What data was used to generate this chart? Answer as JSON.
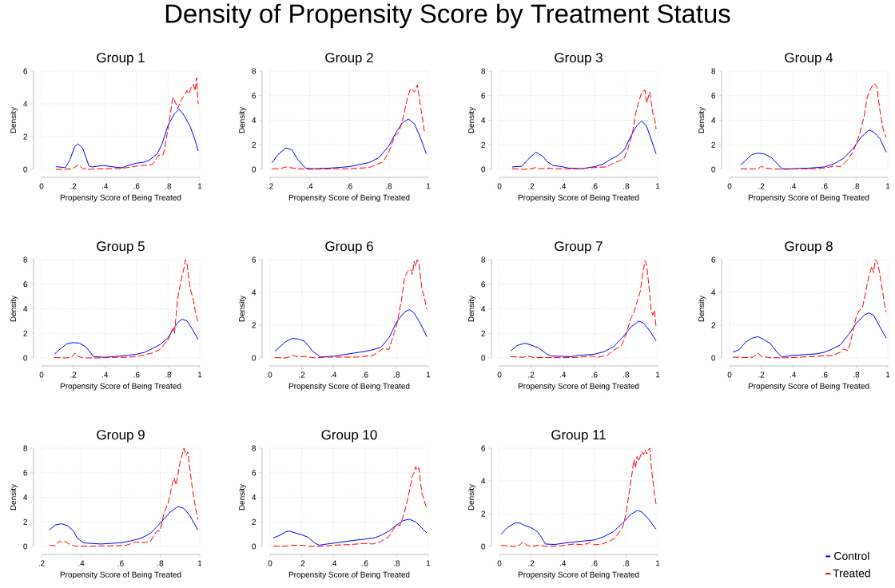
{
  "chart_data": [
    {
      "type": "line",
      "title": "Group 1",
      "xlabel": "Propensity Score of Being Treated",
      "ylabel": "Density",
      "annotations": [
        "Density of Propensity Score by Treatment Status"
      ],
      "grid": true,
      "xlim": [
        0,
        1
      ],
      "ylim": [
        0,
        6
      ],
      "xticks": [
        0,
        {
          "value": 0.2,
          "label": ".2"
        },
        {
          "value": 0.4,
          "label": ".4"
        },
        {
          "value": 0.6,
          "label": ".6"
        },
        {
          "value": 0.8,
          "label": ".8"
        },
        1
      ],
      "yticks": [
        0,
        2,
        4,
        6
      ],
      "series": [
        {
          "color": "#0000ff",
          "line_style": "solid",
          "x": [
            0.09,
            0.15,
            0.18,
            0.21,
            0.23,
            0.26,
            0.3,
            0.32,
            0.36,
            0.39,
            0.43,
            0.47,
            0.51,
            0.55,
            0.6,
            0.64,
            0.68,
            0.73,
            0.76,
            0.8,
            0.84,
            0.87,
            0.9,
            0.94,
            0.97,
            0.99
          ],
          "values": [
            0.17,
            0.1,
            0.6,
            1.4,
            1.55,
            1.3,
            0.2,
            0.15,
            0.2,
            0.24,
            0.18,
            0.13,
            0.1,
            0.25,
            0.38,
            0.42,
            0.55,
            0.95,
            1.5,
            2.7,
            3.4,
            3.68,
            3.3,
            2.6,
            1.8,
            1.12
          ]
        },
        {
          "color": "#ff0000",
          "line_style": "dashed",
          "x": [
            0.09,
            0.15,
            0.2,
            0.23,
            0.26,
            0.3,
            0.4,
            0.5,
            0.6,
            0.66,
            0.7,
            0.74,
            0.77,
            0.8,
            0.83,
            0.85,
            0.86,
            0.88,
            0.9,
            0.92,
            0.93,
            0.95,
            0.96,
            0.97,
            0.98,
            0.99
          ],
          "values": [
            0,
            0,
            0.05,
            0.28,
            0.05,
            0,
            0.05,
            0.05,
            0.2,
            0.25,
            0.3,
            0.85,
            0.9,
            2.5,
            4.4,
            4.0,
            3.7,
            4.2,
            4.5,
            4.8,
            4.6,
            5.1,
            5.2,
            4.8,
            5.6,
            4.0
          ]
        }
      ]
    },
    {
      "type": "line",
      "title": "Group 2",
      "xlabel": "Propensity Score of Being Treated",
      "ylabel": "Density",
      "grid": true,
      "xlim": [
        0.2,
        1
      ],
      "ylim": [
        0,
        8
      ],
      "xticks": [
        {
          "value": 0.2,
          "label": ".2"
        },
        {
          "value": 0.4,
          "label": ".4"
        },
        {
          "value": 0.6,
          "label": ".6"
        },
        {
          "value": 0.8,
          "label": ".8"
        },
        1
      ],
      "yticks": [
        0,
        2,
        4,
        6,
        8
      ],
      "series": [
        {
          "color": "#0000ff",
          "line_style": "solid",
          "x": [
            0.21,
            0.24,
            0.28,
            0.31,
            0.34,
            0.38,
            0.42,
            0.5,
            0.6,
            0.7,
            0.75,
            0.8,
            0.84,
            0.87,
            0.9,
            0.93,
            0.96,
            0.99
          ],
          "values": [
            0.55,
            1.2,
            1.75,
            1.6,
            0.8,
            0.1,
            0.05,
            0.1,
            0.22,
            0.55,
            0.95,
            1.9,
            3.1,
            3.8,
            4.1,
            3.7,
            2.6,
            1.25
          ]
        },
        {
          "color": "#ff0000",
          "line_style": "dashed",
          "x": [
            0.21,
            0.25,
            0.28,
            0.3,
            0.34,
            0.4,
            0.5,
            0.6,
            0.7,
            0.77,
            0.8,
            0.83,
            0.85,
            0.87,
            0.89,
            0.91,
            0.93,
            0.945,
            0.96,
            0.98
          ],
          "values": [
            0.05,
            0.05,
            0.2,
            0.15,
            0.05,
            0,
            0.05,
            0.05,
            0.15,
            0.6,
            1.4,
            2.7,
            3.0,
            4.0,
            5.5,
            6.6,
            6.3,
            6.9,
            5.2,
            3.1
          ]
        }
      ]
    },
    {
      "type": "line",
      "title": "Group 3",
      "xlabel": "Propensity Score of Being Treated",
      "ylabel": "Density",
      "grid": true,
      "xlim": [
        0,
        1
      ],
      "ylim": [
        0,
        8
      ],
      "xticks": [
        0,
        {
          "value": 0.2,
          "label": ".2"
        },
        {
          "value": 0.4,
          "label": ".4"
        },
        {
          "value": 0.6,
          "label": ".6"
        },
        {
          "value": 0.8,
          "label": ".8"
        },
        1
      ],
      "yticks": [
        0,
        2,
        4,
        6,
        8
      ],
      "series": [
        {
          "color": "#0000ff",
          "line_style": "solid",
          "x": [
            0.08,
            0.14,
            0.18,
            0.23,
            0.27,
            0.3,
            0.34,
            0.38,
            0.44,
            0.52,
            0.6,
            0.65,
            0.7,
            0.75,
            0.79,
            0.83,
            0.87,
            0.9,
            0.93,
            0.96,
            0.99
          ],
          "values": [
            0.2,
            0.25,
            0.8,
            1.4,
            1.1,
            0.65,
            0.3,
            0.25,
            0.1,
            0.05,
            0.22,
            0.4,
            0.8,
            1.15,
            1.6,
            2.7,
            3.6,
            3.95,
            3.5,
            2.4,
            1.25
          ]
        },
        {
          "color": "#ff0000",
          "line_style": "dashed",
          "x": [
            0.08,
            0.15,
            0.2,
            0.23,
            0.26,
            0.3,
            0.35,
            0.4,
            0.5,
            0.6,
            0.68,
            0.72,
            0.76,
            0.79,
            0.81,
            0.84,
            0.86,
            0.88,
            0.9,
            0.92,
            0.93,
            0.95,
            0.97,
            0.98,
            0.99
          ],
          "values": [
            0.05,
            0,
            0.05,
            0.15,
            0.05,
            0.1,
            0.05,
            0.05,
            0.05,
            0.15,
            0.2,
            0.5,
            0.7,
            0.95,
            1.6,
            2.9,
            4.5,
            5.5,
            6.3,
            6.45,
            5.4,
            6.3,
            4.5,
            4.2,
            3.3
          ]
        }
      ]
    },
    {
      "type": "line",
      "title": "Group 4",
      "xlabel": "Propensity Score of Being Treated",
      "ylabel": "Density",
      "grid": true,
      "xlim": [
        0,
        1
      ],
      "ylim": [
        0,
        8
      ],
      "xticks": [
        0,
        {
          "value": 0.2,
          "label": ".2"
        },
        {
          "value": 0.4,
          "label": ".4"
        },
        {
          "value": 0.6,
          "label": ".6"
        },
        {
          "value": 0.8,
          "label": ".8"
        },
        1
      ],
      "yticks": [
        0,
        2,
        4,
        6,
        8
      ],
      "series": [
        {
          "color": "#0000ff",
          "line_style": "solid",
          "x": [
            0.07,
            0.1,
            0.14,
            0.18,
            0.22,
            0.26,
            0.3,
            0.33,
            0.4,
            0.5,
            0.6,
            0.66,
            0.72,
            0.78,
            0.83,
            0.88,
            0.91,
            0.95,
            0.99
          ],
          "values": [
            0.35,
            0.7,
            1.2,
            1.32,
            1.25,
            1.0,
            0.5,
            0.05,
            0.05,
            0.1,
            0.2,
            0.45,
            0.9,
            1.7,
            2.6,
            3.2,
            3.05,
            2.5,
            1.4
          ]
        },
        {
          "color": "#ff0000",
          "line_style": "dashed",
          "x": [
            0.07,
            0.15,
            0.18,
            0.2,
            0.23,
            0.28,
            0.35,
            0.45,
            0.55,
            0.62,
            0.67,
            0.7,
            0.74,
            0.78,
            0.82,
            0.85,
            0.87,
            0.89,
            0.91,
            0.93,
            0.95,
            0.97,
            0.99
          ],
          "values": [
            0.05,
            0.03,
            0.05,
            0.25,
            0.1,
            0.03,
            0,
            0.05,
            0.05,
            0.15,
            0.3,
            0.2,
            0.7,
            1.4,
            2.8,
            4.3,
            5.9,
            6.5,
            7.0,
            6.8,
            4.8,
            3.3,
            2.6
          ]
        }
      ]
    },
    {
      "type": "line",
      "title": "Group 5",
      "xlabel": "Propensity Score of Being Treated",
      "ylabel": "Density",
      "grid": true,
      "xlim": [
        0,
        1
      ],
      "ylim": [
        0,
        8
      ],
      "xticks": [
        0,
        {
          "value": 0.2,
          "label": ".2"
        },
        {
          "value": 0.4,
          "label": ".4"
        },
        {
          "value": 0.6,
          "label": ".6"
        },
        {
          "value": 0.8,
          "label": ".8"
        },
        1
      ],
      "yticks": [
        0,
        2,
        4,
        6,
        8
      ],
      "series": [
        {
          "color": "#0000ff",
          "line_style": "solid",
          "x": [
            0.08,
            0.12,
            0.16,
            0.2,
            0.24,
            0.28,
            0.33,
            0.4,
            0.5,
            0.6,
            0.65,
            0.7,
            0.75,
            0.8,
            0.84,
            0.87,
            0.89,
            0.92,
            0.95,
            0.99
          ],
          "values": [
            0.28,
            0.75,
            1.15,
            1.25,
            1.2,
            0.9,
            0.1,
            0.05,
            0.15,
            0.3,
            0.45,
            0.75,
            1.1,
            1.65,
            2.5,
            3.0,
            3.15,
            3.0,
            2.4,
            1.5
          ]
        },
        {
          "color": "#ff0000",
          "line_style": "dashed",
          "x": [
            0.08,
            0.15,
            0.19,
            0.21,
            0.23,
            0.28,
            0.35,
            0.45,
            0.55,
            0.62,
            0.7,
            0.75,
            0.8,
            0.83,
            0.84,
            0.86,
            0.88,
            0.9,
            0.91,
            0.92,
            0.94,
            0.96,
            0.97,
            0.99
          ],
          "values": [
            0.03,
            0,
            0.05,
            0.4,
            0.1,
            0,
            0,
            0.05,
            0.05,
            0.15,
            0.4,
            0.7,
            1.5,
            2.4,
            2.0,
            4.8,
            6.2,
            7.3,
            8.0,
            7.6,
            5.6,
            4.7,
            3.9,
            2.8
          ]
        }
      ]
    },
    {
      "type": "line",
      "title": "Group 6",
      "xlabel": "Propensity Score of Being Treated",
      "ylabel": "Density",
      "grid": true,
      "xlim": [
        0,
        1
      ],
      "ylim": [
        0,
        6
      ],
      "xticks": [
        0,
        {
          "value": 0.2,
          "label": ".2"
        },
        {
          "value": 0.4,
          "label": ".4"
        },
        {
          "value": 0.6,
          "label": ".6"
        },
        {
          "value": 0.8,
          "label": ".8"
        },
        1
      ],
      "yticks": [
        0,
        2,
        4,
        6
      ],
      "series": [
        {
          "color": "#0000ff",
          "line_style": "solid",
          "x": [
            0.03,
            0.07,
            0.1,
            0.14,
            0.18,
            0.22,
            0.27,
            0.32,
            0.4,
            0.5,
            0.6,
            0.65,
            0.7,
            0.75,
            0.8,
            0.85,
            0.88,
            0.91,
            0.95,
            0.99
          ],
          "values": [
            0.4,
            0.75,
            1.0,
            1.2,
            1.15,
            1.0,
            0.4,
            0.05,
            0.1,
            0.25,
            0.4,
            0.5,
            0.65,
            1.2,
            2.2,
            2.8,
            2.95,
            2.75,
            2.1,
            1.3
          ]
        },
        {
          "color": "#ff0000",
          "line_style": "dashed",
          "x": [
            0.03,
            0.1,
            0.15,
            0.18,
            0.22,
            0.28,
            0.35,
            0.45,
            0.55,
            0.65,
            0.72,
            0.75,
            0.78,
            0.8,
            0.83,
            0.85,
            0.87,
            0.89,
            0.9,
            0.91,
            0.92,
            0.93,
            0.94,
            0.96,
            0.97,
            0.99
          ],
          "values": [
            0.02,
            0,
            0.15,
            0.05,
            0.1,
            0,
            0.05,
            0.05,
            0.05,
            0.15,
            0.6,
            0.5,
            1.4,
            2.0,
            3.5,
            4.9,
            5.3,
            5.4,
            5.1,
            5.9,
            5.6,
            6.0,
            5.8,
            4.2,
            3.9,
            3.0
          ]
        }
      ]
    },
    {
      "type": "line",
      "title": "Group 7",
      "xlabel": "Propensity Score of Being Treated",
      "ylabel": "Density",
      "grid": true,
      "xlim": [
        0,
        1
      ],
      "ylim": [
        0,
        8
      ],
      "xticks": [
        0,
        {
          "value": 0.2,
          "label": ".2"
        },
        {
          "value": 0.4,
          "label": ".4"
        },
        {
          "value": 0.6,
          "label": ".6"
        },
        {
          "value": 0.8,
          "label": ".8"
        },
        1
      ],
      "yticks": [
        0,
        2,
        4,
        6,
        8
      ],
      "series": [
        {
          "color": "#0000ff",
          "line_style": "solid",
          "x": [
            0.07,
            0.11,
            0.16,
            0.2,
            0.25,
            0.3,
            0.33,
            0.4,
            0.45,
            0.5,
            0.6,
            0.66,
            0.72,
            0.78,
            0.83,
            0.88,
            0.91,
            0.95,
            0.99
          ],
          "values": [
            0.55,
            1.0,
            1.2,
            1.05,
            0.8,
            0.3,
            0.15,
            0.13,
            0.1,
            0.2,
            0.3,
            0.5,
            0.9,
            1.7,
            2.5,
            3.0,
            2.85,
            2.2,
            1.4
          ]
        },
        {
          "color": "#ff0000",
          "line_style": "dashed",
          "x": [
            0.07,
            0.15,
            0.18,
            0.22,
            0.3,
            0.4,
            0.5,
            0.58,
            0.62,
            0.68,
            0.72,
            0.77,
            0.8,
            0.83,
            0.85,
            0.87,
            0.89,
            0.91,
            0.92,
            0.93,
            0.95,
            0.96,
            0.97,
            0.98,
            0.99
          ],
          "values": [
            0.1,
            0.05,
            0.15,
            0.03,
            0.03,
            0.02,
            0.05,
            0.15,
            0.05,
            0.2,
            0.6,
            1.0,
            1.9,
            3.2,
            3.7,
            4.6,
            5.4,
            7.2,
            7.9,
            7.6,
            5.2,
            3.8,
            3.5,
            3.9,
            2.5
          ]
        }
      ]
    },
    {
      "type": "line",
      "title": "Group 8",
      "xlabel": "Propensity Score of Being Treated",
      "ylabel": "Density",
      "grid": true,
      "xlim": [
        0,
        1
      ],
      "ylim": [
        0,
        6
      ],
      "xticks": [
        0,
        {
          "value": 0.2,
          "label": ".2"
        },
        {
          "value": 0.4,
          "label": ".4"
        },
        {
          "value": 0.6,
          "label": ".6"
        },
        {
          "value": 0.8,
          "label": ".8"
        },
        1
      ],
      "yticks": [
        0,
        2,
        4,
        6
      ],
      "series": [
        {
          "color": "#0000ff",
          "line_style": "solid",
          "x": [
            0.02,
            0.06,
            0.1,
            0.14,
            0.18,
            0.22,
            0.26,
            0.3,
            0.33,
            0.4,
            0.5,
            0.55,
            0.6,
            0.65,
            0.7,
            0.75,
            0.8,
            0.85,
            0.88,
            0.91,
            0.95,
            0.99
          ],
          "values": [
            0.35,
            0.5,
            0.95,
            1.2,
            1.3,
            1.1,
            0.85,
            0.35,
            0.05,
            0.15,
            0.22,
            0.25,
            0.35,
            0.55,
            0.8,
            1.4,
            2.1,
            2.6,
            2.75,
            2.6,
            1.9,
            1.2
          ]
        },
        {
          "color": "#ff0000",
          "line_style": "dashed",
          "x": [
            0.02,
            0.1,
            0.15,
            0.18,
            0.2,
            0.25,
            0.35,
            0.45,
            0.55,
            0.65,
            0.7,
            0.72,
            0.75,
            0.78,
            0.8,
            0.82,
            0.84,
            0.86,
            0.88,
            0.9,
            0.91,
            0.92,
            0.93,
            0.94,
            0.96,
            0.98,
            0.99
          ],
          "values": [
            0.05,
            0.02,
            0.05,
            0.3,
            0.1,
            0.02,
            0,
            0.05,
            0.1,
            0.15,
            0.35,
            0.55,
            0.45,
            1.6,
            2.5,
            2.9,
            3.1,
            4.0,
            5.0,
            5.6,
            5.2,
            6.0,
            5.9,
            5.6,
            4.5,
            3.2,
            2.8
          ]
        }
      ]
    },
    {
      "type": "line",
      "title": "Group 9",
      "xlabel": "Propensity Score of Being Treated",
      "ylabel": "Density",
      "grid": true,
      "xlim": [
        0.2,
        1
      ],
      "ylim": [
        0,
        8
      ],
      "xticks": [
        {
          "value": 0.2,
          "label": ".2"
        },
        {
          "value": 0.4,
          "label": ".4"
        },
        {
          "value": 0.6,
          "label": ".6"
        },
        {
          "value": 0.8,
          "label": ".8"
        },
        1
      ],
      "yticks": [
        0,
        2,
        4,
        6,
        8
      ],
      "series": [
        {
          "color": "#0000ff",
          "line_style": "solid",
          "x": [
            0.24,
            0.27,
            0.3,
            0.33,
            0.36,
            0.38,
            0.41,
            0.45,
            0.5,
            0.55,
            0.6,
            0.65,
            0.7,
            0.75,
            0.8,
            0.85,
            0.89,
            0.92,
            0.95,
            0.99
          ],
          "values": [
            1.35,
            1.75,
            1.85,
            1.7,
            1.3,
            0.7,
            0.3,
            0.25,
            0.2,
            0.25,
            0.3,
            0.45,
            0.65,
            1.05,
            1.9,
            2.8,
            3.25,
            3.1,
            2.5,
            1.35
          ]
        },
        {
          "color": "#ff0000",
          "line_style": "dashed",
          "x": [
            0.24,
            0.27,
            0.29,
            0.3,
            0.32,
            0.34,
            0.37,
            0.45,
            0.52,
            0.58,
            0.63,
            0.67,
            0.7,
            0.72,
            0.75,
            0.78,
            0.8,
            0.82,
            0.84,
            0.86,
            0.87,
            0.88,
            0.9,
            0.92,
            0.93,
            0.94,
            0.96,
            0.98,
            0.99
          ],
          "values": [
            0.1,
            0.05,
            0.45,
            0.35,
            0.4,
            0.2,
            0.02,
            0.02,
            0.05,
            0.05,
            0.1,
            0.35,
            0.35,
            0.3,
            0.4,
            1.2,
            1.3,
            2.8,
            3.5,
            5.0,
            5.6,
            5.0,
            6.8,
            8.0,
            7.4,
            7.7,
            5.0,
            3.0,
            2.2
          ]
        }
      ]
    },
    {
      "type": "line",
      "title": "Group 10",
      "xlabel": "Propensity Score of Being Treated",
      "ylabel": "Density",
      "grid": true,
      "xlim": [
        0,
        1
      ],
      "ylim": [
        0,
        8
      ],
      "xticks": [
        0,
        {
          "value": 0.2,
          "label": ".2"
        },
        {
          "value": 0.4,
          "label": ".4"
        },
        {
          "value": 0.6,
          "label": ".6"
        },
        {
          "value": 0.8,
          "label": ".8"
        },
        1
      ],
      "yticks": [
        0,
        2,
        4,
        6,
        8
      ],
      "series": [
        {
          "color": "#0000ff",
          "line_style": "solid",
          "x": [
            0.02,
            0.06,
            0.1,
            0.12,
            0.16,
            0.2,
            0.24,
            0.28,
            0.31,
            0.36,
            0.42,
            0.5,
            0.6,
            0.66,
            0.7,
            0.75,
            0.8,
            0.84,
            0.88,
            0.92,
            0.96,
            0.99
          ],
          "values": [
            0.7,
            0.9,
            1.2,
            1.25,
            1.1,
            0.95,
            0.75,
            0.3,
            0.1,
            0.2,
            0.3,
            0.45,
            0.6,
            0.7,
            0.9,
            1.25,
            1.75,
            2.1,
            2.22,
            2.0,
            1.5,
            1.1
          ]
        },
        {
          "color": "#ff0000",
          "line_style": "dashed",
          "x": [
            0.02,
            0.1,
            0.14,
            0.17,
            0.2,
            0.25,
            0.32,
            0.4,
            0.5,
            0.6,
            0.65,
            0.7,
            0.75,
            0.8,
            0.82,
            0.84,
            0.86,
            0.88,
            0.9,
            0.91,
            0.92,
            0.93,
            0.94,
            0.96,
            0.98,
            0.99
          ],
          "values": [
            0.02,
            0.03,
            0.1,
            0.1,
            0.1,
            0.02,
            0,
            0.1,
            0.15,
            0.25,
            0.2,
            0.4,
            0.8,
            1.8,
            1.7,
            2.4,
            3.3,
            4.5,
            5.8,
            6.0,
            6.5,
            6.2,
            6.4,
            4.3,
            3.5,
            3.1
          ]
        }
      ]
    },
    {
      "type": "line",
      "title": "Group 11",
      "xlabel": "Propensity Score of Being Treated",
      "ylabel": "Density",
      "grid": true,
      "legend": "bottom right",
      "xlim": [
        0,
        1
      ],
      "ylim": [
        0,
        6
      ],
      "xticks": [
        0,
        {
          "value": 0.2,
          "label": ".2"
        },
        {
          "value": 0.4,
          "label": ".4"
        },
        {
          "value": 0.6,
          "label": ".6"
        },
        {
          "value": 0.8,
          "label": ".8"
        },
        1
      ],
      "yticks": [
        0,
        2,
        4,
        6
      ],
      "series": [
        {
          "name": "Control",
          "color": "#0000ff",
          "line_style": "solid",
          "x": [
            0.01,
            0.05,
            0.1,
            0.13,
            0.16,
            0.2,
            0.24,
            0.27,
            0.29,
            0.35,
            0.42,
            0.5,
            0.6,
            0.66,
            0.72,
            0.78,
            0.83,
            0.87,
            0.9,
            0.94,
            0.99
          ],
          "values": [
            0.75,
            1.15,
            1.45,
            1.42,
            1.28,
            1.15,
            0.9,
            0.5,
            0.15,
            0.12,
            0.22,
            0.3,
            0.4,
            0.6,
            0.9,
            1.45,
            1.95,
            2.2,
            2.1,
            1.7,
            1.05
          ]
        },
        {
          "name": "Treated",
          "color": "#ff0000",
          "line_style": "dashed",
          "x": [
            0.01,
            0.05,
            0.1,
            0.13,
            0.15,
            0.17,
            0.2,
            0.25,
            0.3,
            0.4,
            0.47,
            0.53,
            0.58,
            0.6,
            0.65,
            0.7,
            0.73,
            0.78,
            0.8,
            0.82,
            0.84,
            0.85,
            0.86,
            0.87,
            0.88,
            0.9,
            0.91,
            0.92,
            0.93,
            0.94,
            0.95,
            0.96,
            0.98,
            0.99
          ],
          "values": [
            0.08,
            0.03,
            0,
            0.1,
            0.3,
            0.1,
            0,
            0.08,
            0,
            0.05,
            0.15,
            0.1,
            0.25,
            0.1,
            0.15,
            0.35,
            0.5,
            1.2,
            2.0,
            3.3,
            4.6,
            5.3,
            4.8,
            5.5,
            5.2,
            5.8,
            5.6,
            5.9,
            5.65,
            5.9,
            6.0,
            4.8,
            3.2,
            2.6
          ]
        }
      ]
    }
  ]
}
